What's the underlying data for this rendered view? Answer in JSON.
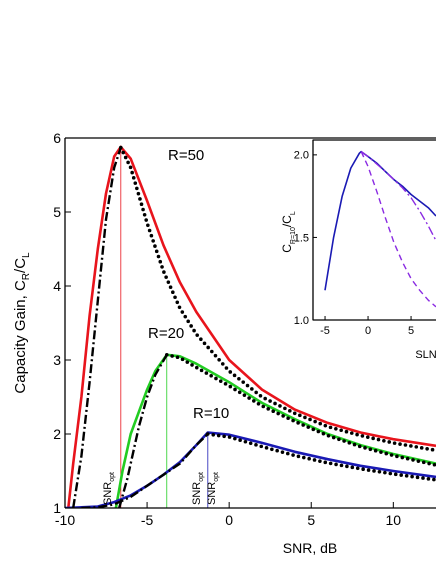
{
  "chart_data": [
    {
      "type": "line",
      "xlabel": "SNR,  dB",
      "ylabel": [
        "Capacity Gain, C",
        "R",
        "/C",
        "L"
      ],
      "xlim": [
        -10,
        12.6
      ],
      "ylim": [
        1,
        6
      ],
      "xticks": [
        -10,
        -5,
        0,
        5,
        10
      ],
      "yticks": [
        1,
        2,
        3,
        4,
        5,
        6
      ],
      "annotations": [
        "R=50",
        "R=20",
        "R=10"
      ],
      "opt_labels": [
        [
          "SNR",
          "opt"
        ],
        [
          "SNR",
          "opt"
        ],
        [
          "SNR",
          "opt"
        ]
      ],
      "vlines": [
        {
          "x": -6.6,
          "y": 5.88,
          "color": "#e8141c"
        },
        {
          "x": -3.8,
          "y": 3.07,
          "color": "#22cc22"
        },
        {
          "x": -1.3,
          "y": 2.02,
          "color": "#1a1ab4"
        }
      ],
      "series": [
        {
          "color": "#e8141c",
          "style": "solid",
          "x": [
            -9.8,
            -9.5,
            -9,
            -8.5,
            -8,
            -7.5,
            -7,
            -6.6,
            -6,
            -5,
            -4,
            -3,
            -2,
            0,
            2,
            4,
            6,
            8,
            10,
            12.6
          ],
          "values": [
            1,
            1.6,
            2.5,
            3.6,
            4.5,
            5.25,
            5.75,
            5.88,
            5.72,
            5.15,
            4.55,
            4.05,
            3.65,
            3.0,
            2.6,
            2.33,
            2.15,
            2.02,
            1.93,
            1.84
          ]
        },
        {
          "color": "#22cc22",
          "style": "solid",
          "x": [
            -6.9,
            -6.5,
            -6,
            -5,
            -4.5,
            -3.8,
            -3,
            -2,
            0,
            2,
            4,
            6,
            8,
            10,
            12.6
          ],
          "values": [
            1,
            1.5,
            2.0,
            2.6,
            2.85,
            3.07,
            3.05,
            2.95,
            2.7,
            2.42,
            2.2,
            2.0,
            1.85,
            1.73,
            1.6
          ]
        },
        {
          "color": "#1a1ab4",
          "style": "solid",
          "x": [
            -10,
            -8,
            -7,
            -6,
            -5,
            -4,
            -3,
            -2,
            -1.3,
            0,
            2,
            4,
            6,
            8,
            10,
            12.6
          ],
          "values": [
            1,
            1.02,
            1.08,
            1.17,
            1.3,
            1.45,
            1.62,
            1.85,
            2.02,
            1.99,
            1.88,
            1.76,
            1.66,
            1.57,
            1.5,
            1.42
          ]
        },
        {
          "color": "#000000",
          "style": "dash-dot",
          "x": [
            -9.5,
            -9,
            -8.5,
            -8,
            -7.5,
            -7,
            -6.6
          ],
          "values": [
            1,
            1.7,
            2.7,
            3.8,
            4.9,
            5.6,
            5.87
          ]
        },
        {
          "color": "#000000",
          "style": "dotted",
          "x": [
            -6.6,
            -6,
            -5,
            -4,
            -3,
            -2,
            0,
            2,
            4,
            6,
            8,
            10,
            12.6
          ],
          "values": [
            5.87,
            5.6,
            4.85,
            4.2,
            3.7,
            3.35,
            2.85,
            2.5,
            2.28,
            2.1,
            1.98,
            1.88,
            1.78
          ]
        },
        {
          "color": "#000000",
          "style": "dash-dot",
          "x": [
            -6.7,
            -6.2,
            -5.5,
            -5,
            -4.5,
            -3.8
          ],
          "values": [
            1,
            1.4,
            2.1,
            2.5,
            2.8,
            3.07
          ]
        },
        {
          "color": "#000000",
          "style": "dotted",
          "x": [
            -3.8,
            -3,
            -2,
            0,
            2,
            4,
            6,
            8,
            10,
            12.6
          ],
          "values": [
            3.07,
            3.03,
            2.9,
            2.65,
            2.38,
            2.17,
            1.98,
            1.83,
            1.71,
            1.58
          ]
        },
        {
          "color": "#000000",
          "style": "dash-dot",
          "x": [
            -9,
            -8,
            -7,
            -6,
            -5,
            -4,
            -3,
            -2,
            -1.3
          ],
          "values": [
            1,
            1.01,
            1.05,
            1.15,
            1.3,
            1.45,
            1.6,
            1.85,
            2.0
          ]
        },
        {
          "color": "#000000",
          "style": "dotted",
          "x": [
            -1.3,
            0,
            2,
            4,
            6,
            8,
            10,
            12.6
          ],
          "values": [
            2.0,
            1.96,
            1.83,
            1.71,
            1.61,
            1.53,
            1.46,
            1.38
          ]
        }
      ]
    },
    {
      "type": "line",
      "xlabel": "SLNR",
      "ylabel": [
        "C",
        "R=10",
        "/C",
        "L"
      ],
      "xlim": [
        -6.4,
        7.9
      ],
      "ylim": [
        1,
        2.09
      ],
      "xticks": [
        -5,
        0,
        5
      ],
      "yticks": [
        {
          "value": 1,
          "label": "1.0"
        },
        {
          "value": 1.5,
          "label": "1.5"
        },
        {
          "value": 2,
          "label": "2.0"
        }
      ],
      "series": [
        {
          "color": "#1a1ab4",
          "style": "solid",
          "x": [
            -5,
            -4,
            -3,
            -2,
            -1,
            -0.8,
            0,
            1,
            2,
            3,
            4,
            5,
            6,
            7,
            7.9
          ],
          "values": [
            1.18,
            1.5,
            1.75,
            1.92,
            2.01,
            2.02,
            1.99,
            1.95,
            1.9,
            1.85,
            1.81,
            1.76,
            1.72,
            1.68,
            1.63
          ]
        },
        {
          "color": "#8a2be2",
          "style": "dashed",
          "x": [
            -0.8,
            0,
            1,
            2,
            3,
            4,
            5,
            6,
            7,
            7.9
          ],
          "values": [
            2.02,
            1.93,
            1.78,
            1.62,
            1.47,
            1.35,
            1.25,
            1.18,
            1.12,
            1.08
          ]
        },
        {
          "color": "#8a2be2",
          "style": "dash-dot",
          "x": [
            -0.8,
            0,
            2,
            4,
            5,
            6,
            7,
            7.9
          ],
          "values": [
            2.02,
            1.99,
            1.9,
            1.8,
            1.74,
            1.66,
            1.57,
            1.48
          ]
        }
      ]
    }
  ]
}
